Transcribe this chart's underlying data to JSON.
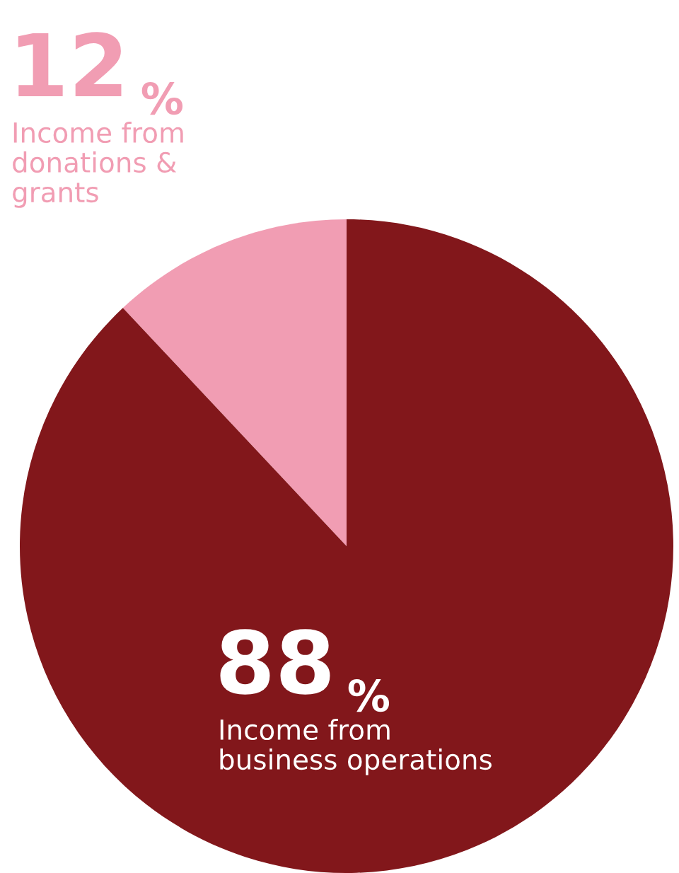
{
  "chart_data": {
    "type": "pie",
    "categories": [
      "Income from\ndonations &\ngrants",
      "Income from\nbusiness operations"
    ],
    "values": [
      12,
      88
    ],
    "colors": [
      "#f19db3",
      "#82171b"
    ],
    "value_labels": [
      "12 %",
      "88 %"
    ],
    "legend": false
  }
}
